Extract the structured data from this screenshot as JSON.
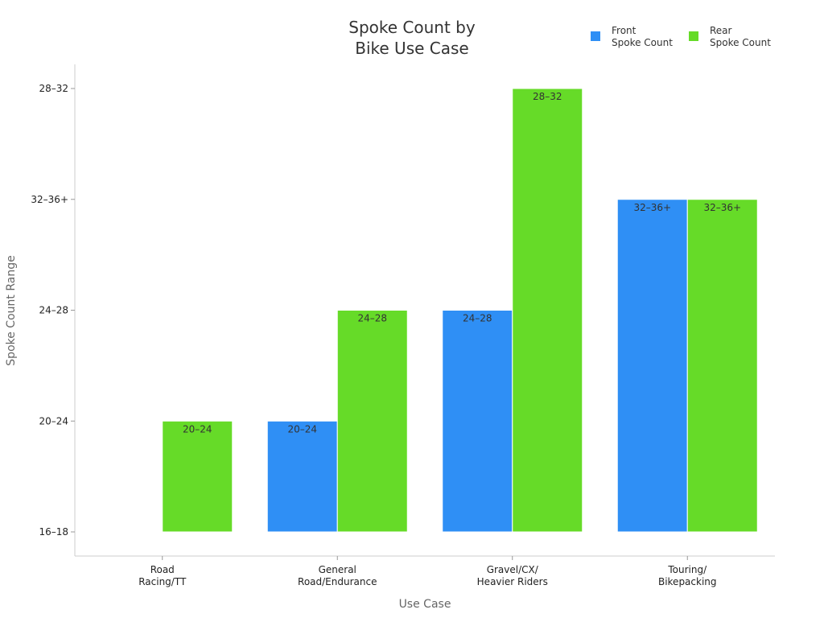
{
  "chart_data": {
    "type": "bar",
    "title": [
      "Spoke Count by",
      "Bike Use Case"
    ],
    "xlabel": "Use Case",
    "ylabel": "Spoke Count Range",
    "y_ticks": [
      "16–18",
      "20–24",
      "24–28",
      "32–36+",
      "28–32"
    ],
    "categories": [
      [
        "Road",
        "Racing/TT"
      ],
      [
        "General",
        "Road/Endurance"
      ],
      [
        "Gravel/CX/",
        "Heavier Riders"
      ],
      [
        "Touring/",
        "Bikepacking"
      ]
    ],
    "series": [
      {
        "name": [
          "Front",
          "Spoke Count"
        ],
        "color": "#2f8ff5",
        "values": [
          null,
          "20–24",
          "24–28",
          "32–36+"
        ]
      },
      {
        "name": [
          "Rear",
          "Spoke Count"
        ],
        "color": "#66db28",
        "values": [
          "20–24",
          "24–28",
          "28–32",
          "32–36+"
        ]
      }
    ],
    "legend_position": "top-right",
    "grid": false
  }
}
